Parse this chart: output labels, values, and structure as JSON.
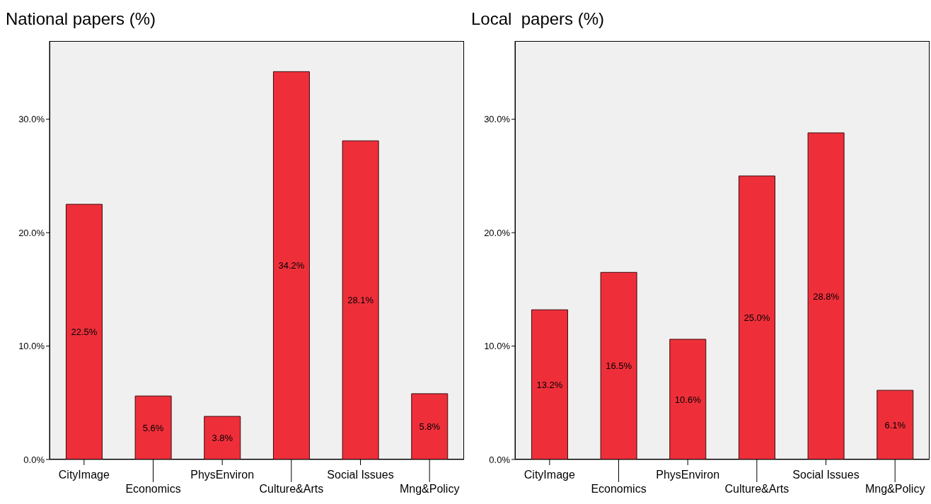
{
  "chart_data": [
    {
      "type": "bar",
      "title": "National papers (%)",
      "categories": [
        "CityImage",
        "Economics",
        "PhysEnviron",
        "Culture&Arts",
        "Social Issues",
        "Mng&Policy"
      ],
      "values": [
        22.5,
        5.6,
        3.8,
        34.2,
        28.1,
        5.8
      ],
      "value_labels": [
        "22.5%",
        "5.6%",
        "3.8%",
        "34.2%",
        "28.1%",
        "5.8%"
      ],
      "color": "#ee2f3a",
      "ylim": [
        0,
        36.9
      ],
      "yticks": [
        {
          "value": 0,
          "label": "0.0%"
        },
        {
          "value": 10,
          "label": "10.0%"
        },
        {
          "value": 20,
          "label": "20.0%"
        },
        {
          "value": 30,
          "label": "30.0%"
        }
      ],
      "legend": false,
      "grid": false
    },
    {
      "type": "bar",
      "title": "Local  papers (%)",
      "categories": [
        "CityImage",
        "Economics",
        "PhysEnviron",
        "Culture&Arts",
        "Social Issues",
        "Mng&Policy"
      ],
      "values": [
        13.2,
        16.5,
        10.6,
        25.0,
        28.8,
        6.1
      ],
      "value_labels": [
        "13.2%",
        "16.5%",
        "10.6%",
        "25.0%",
        "28.8%",
        "6.1%"
      ],
      "color": "#ee2f3a",
      "ylim": [
        0,
        36.9
      ],
      "yticks": [
        {
          "value": 0,
          "label": "0.0%"
        },
        {
          "value": 10,
          "label": "10.0%"
        },
        {
          "value": 20,
          "label": "20.0%"
        },
        {
          "value": 30,
          "label": "30.0%"
        }
      ],
      "legend": false,
      "grid": false
    }
  ]
}
